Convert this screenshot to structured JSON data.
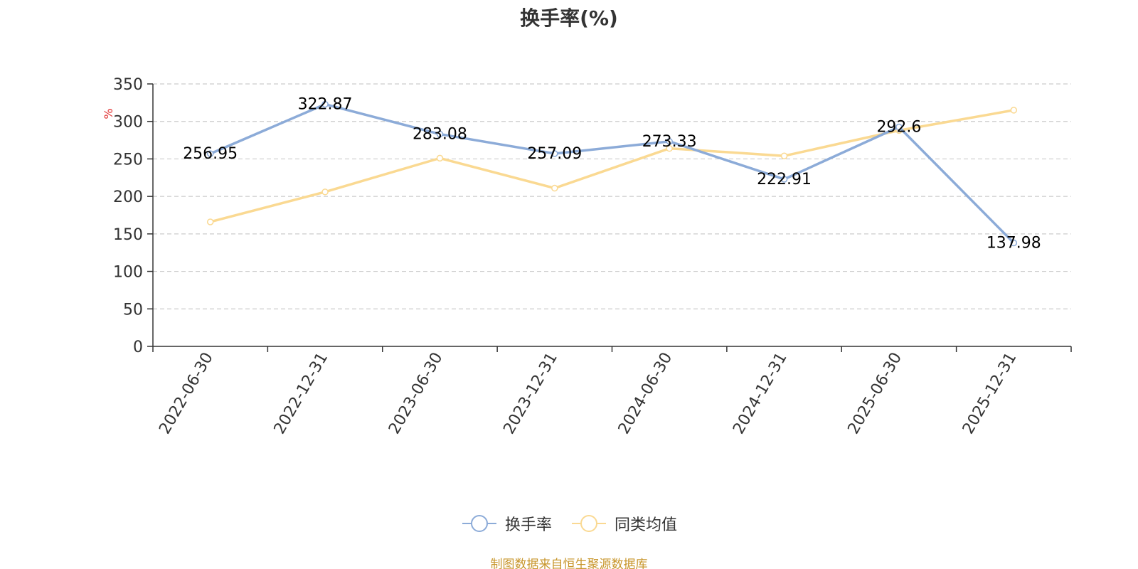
{
  "colors": {
    "series1": "#8cabd8",
    "series2": "#fad992",
    "axis": "#333333",
    "grid": "#cccccc",
    "unit": "#e03030",
    "source": "#c8962c",
    "label": "#000000"
  },
  "chart_data": {
    "type": "line",
    "title": "换手率(%)",
    "ylabel": "%",
    "xlabel": "",
    "ylim": [
      0,
      350
    ],
    "yticks": [
      0,
      50,
      100,
      150,
      200,
      250,
      300,
      350
    ],
    "grid": true,
    "legend_position": "bottom",
    "categories": [
      "2022-06-30",
      "2022-12-31",
      "2023-06-30",
      "2023-12-31",
      "2024-06-30",
      "2024-12-31",
      "2025-06-30",
      "2025-12-31"
    ],
    "series": [
      {
        "name": "换手率",
        "color_key": "series1",
        "values": [
          256.95,
          322.87,
          283.08,
          257.09,
          273.33,
          222.91,
          292.6,
          137.98
        ],
        "data_labels": [
          "256.95",
          "322.87",
          "283.08",
          "257.09",
          "273.33",
          "222.91",
          "292.6",
          "137.98"
        ]
      },
      {
        "name": "同类均值",
        "color_key": "series2",
        "values": [
          166,
          206,
          251,
          211,
          264,
          254,
          288,
          315
        ]
      }
    ]
  },
  "footer": {
    "source": "制图数据来自恒生聚源数据库"
  }
}
